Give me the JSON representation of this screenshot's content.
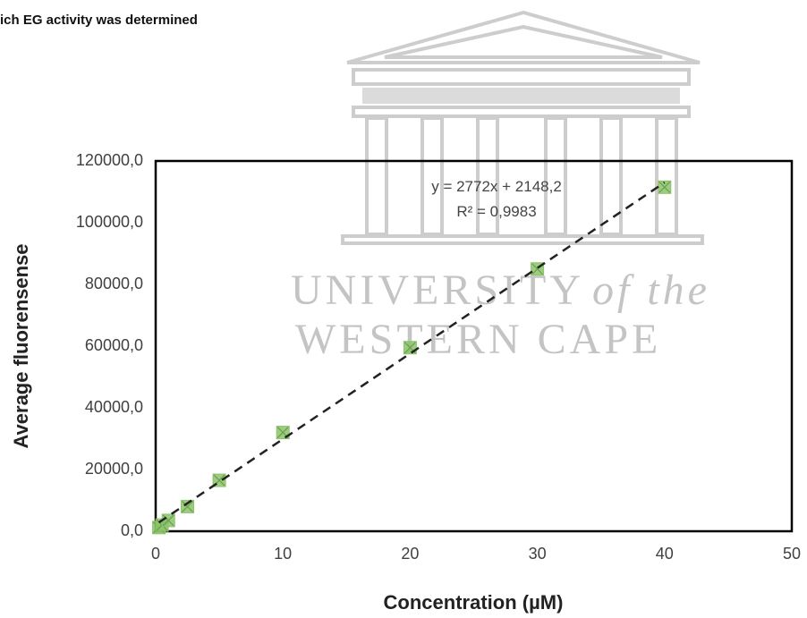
{
  "header_text": "ich EG activity was determined",
  "watermark": {
    "line1": "UNIVERSITY",
    "line1_suffix": "of the",
    "line2": "WESTERN CAPE"
  },
  "chart_data": {
    "type": "scatter",
    "x_label": "Concentration (µM)",
    "y_label": "Average fluorensense",
    "x": [
      0.25,
      0.5,
      1,
      2.5,
      5,
      10,
      20,
      30,
      40
    ],
    "series": [
      {
        "color": "#8cc36a",
        "values": [
          1200,
          2000,
          3500,
          8000,
          16500,
          32000,
          59500,
          85000,
          111500
        ]
      }
    ],
    "xlim": [
      0,
      50
    ],
    "xticks": [
      0,
      10,
      20,
      30,
      40,
      50
    ],
    "ylim": [
      0,
      120000
    ],
    "yticks": [
      {
        "value": 0,
        "label": "0,0"
      },
      {
        "value": 20000,
        "label": "20000,0"
      },
      {
        "value": 40000,
        "label": "40000,0"
      },
      {
        "value": 60000,
        "label": "60000,0"
      },
      {
        "value": 80000,
        "label": "80000,0"
      },
      {
        "value": 100000,
        "label": "100000,0"
      },
      {
        "value": 120000,
        "label": "120000,0"
      }
    ],
    "trendline": {
      "slope": 2772,
      "intercept": 2148.2,
      "color": "#222222",
      "equation": "y = 2772x + 2148,2",
      "r2": "R² = 0,9983"
    }
  }
}
